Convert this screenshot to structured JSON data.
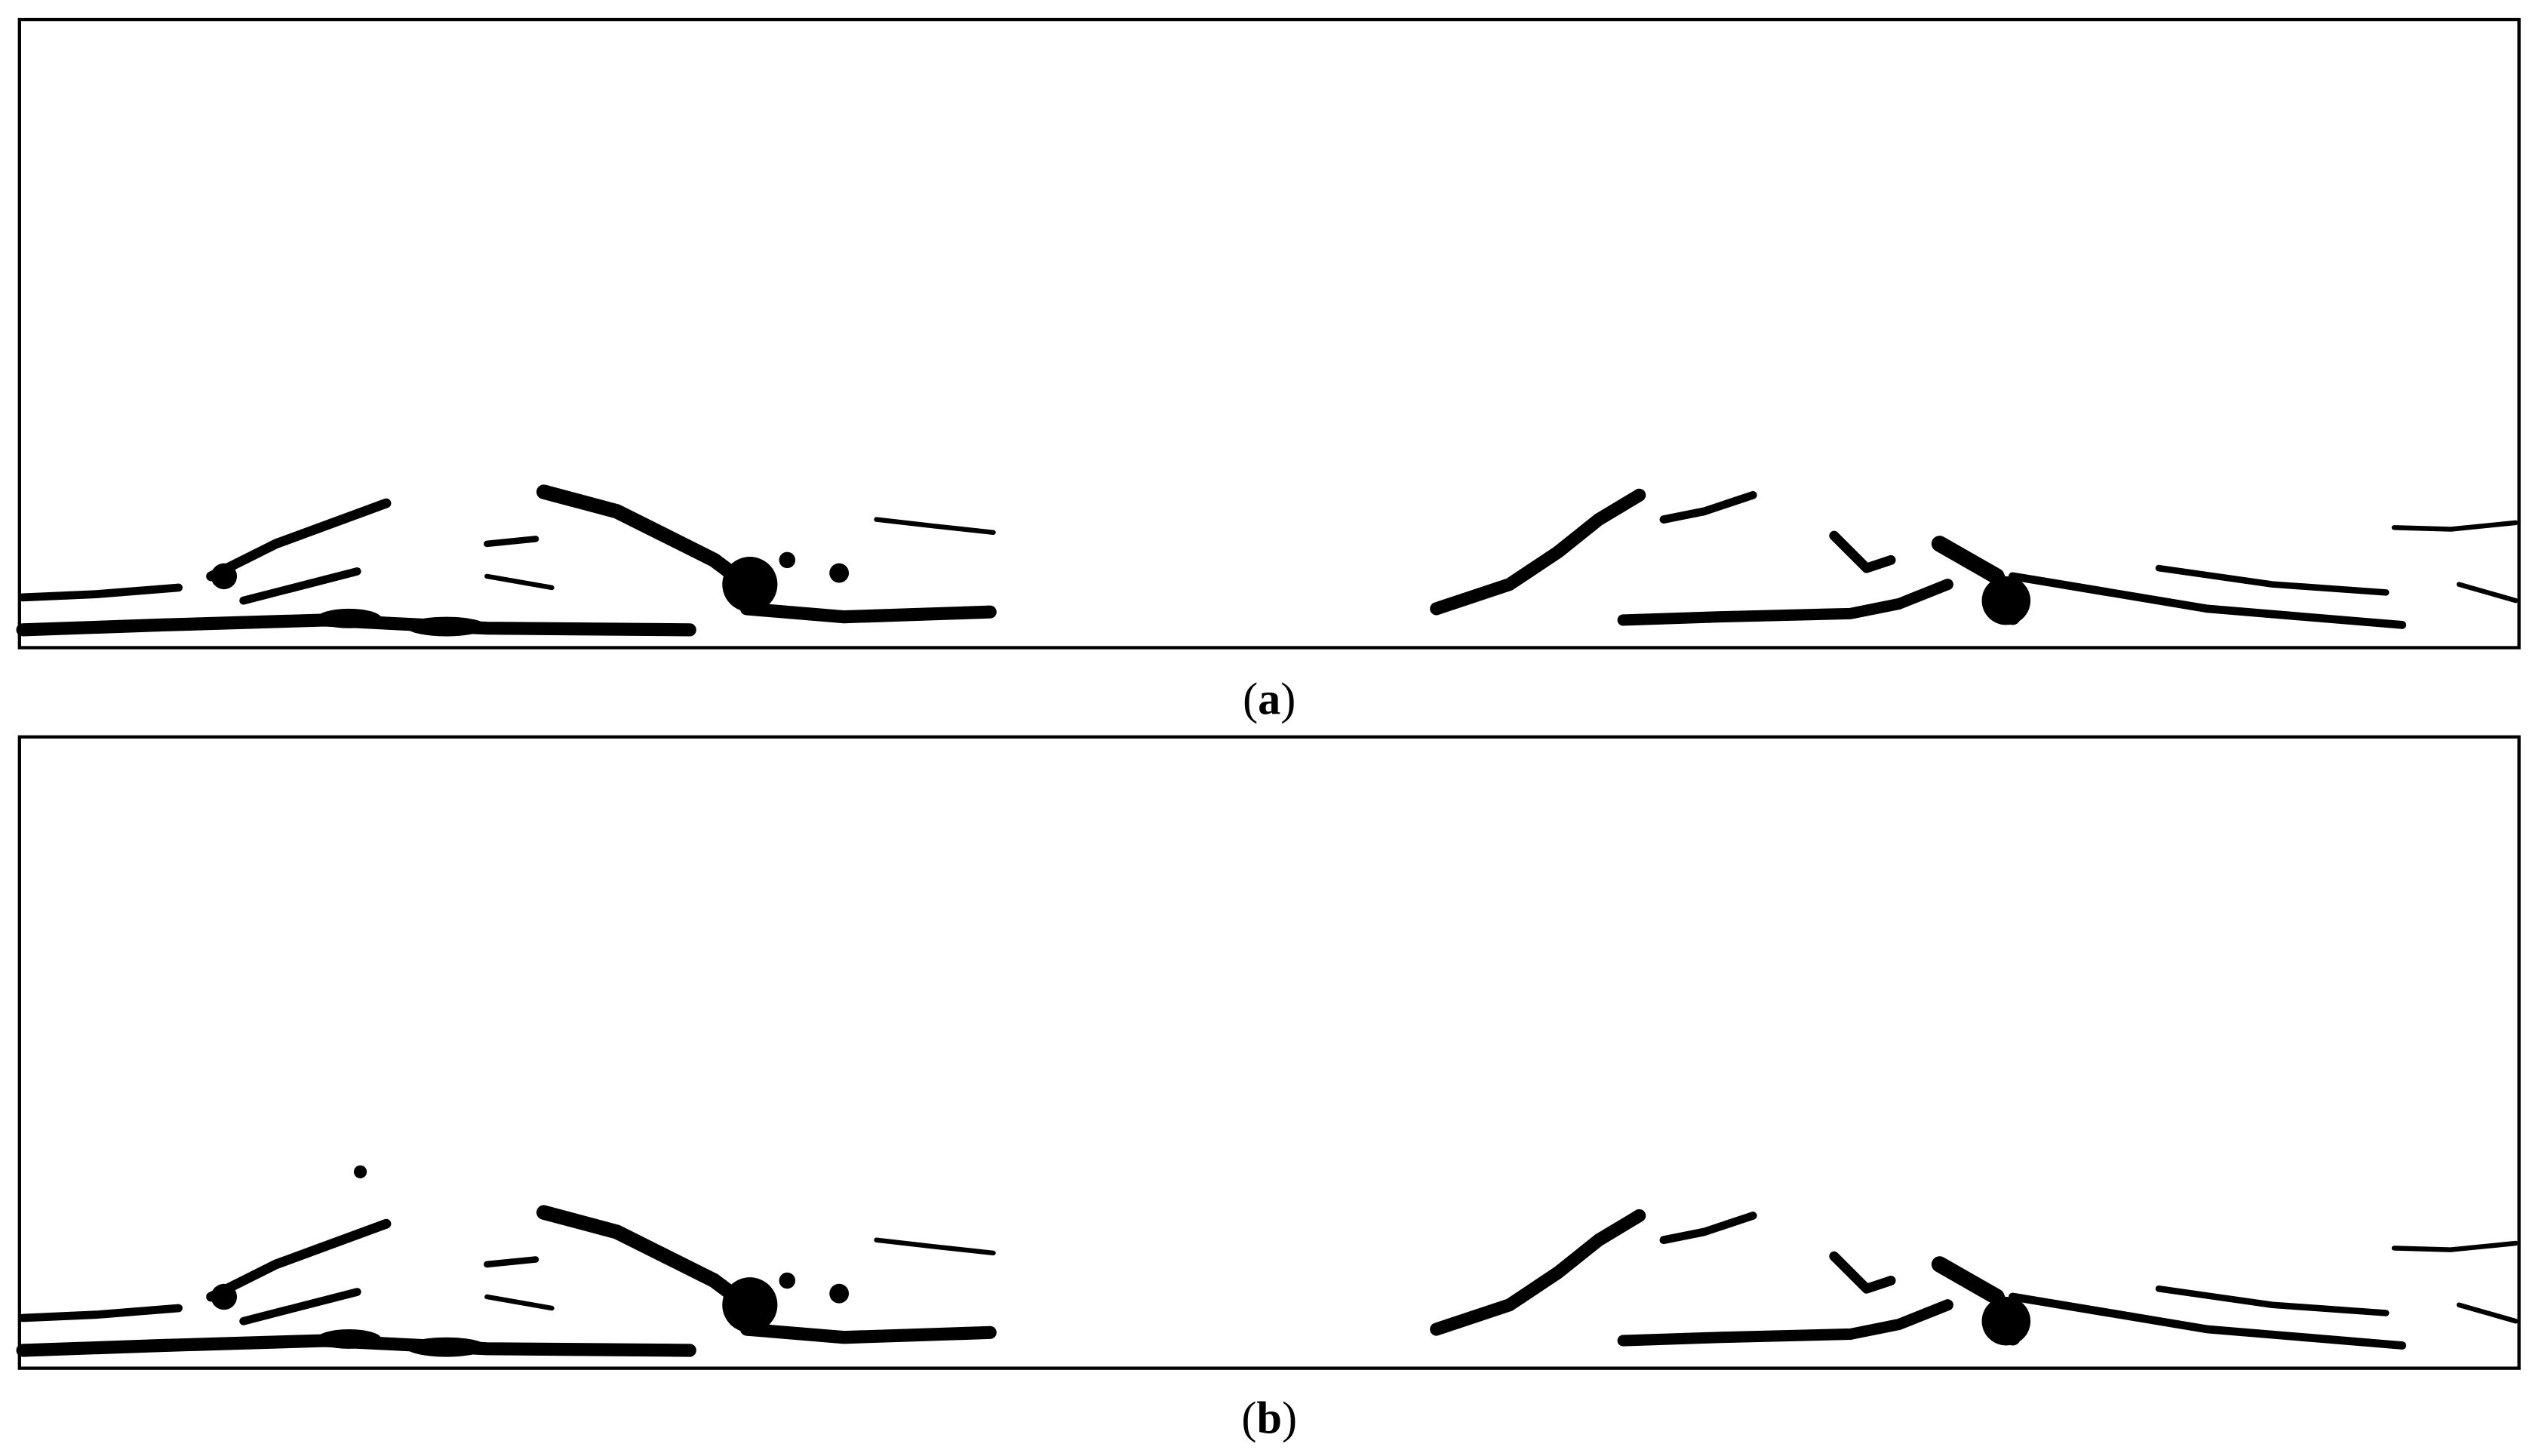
{
  "panels": [
    {
      "caption": [
        "(",
        "a",
        ")"
      ]
    },
    {
      "caption": [
        "(",
        "b",
        ")"
      ]
    }
  ]
}
